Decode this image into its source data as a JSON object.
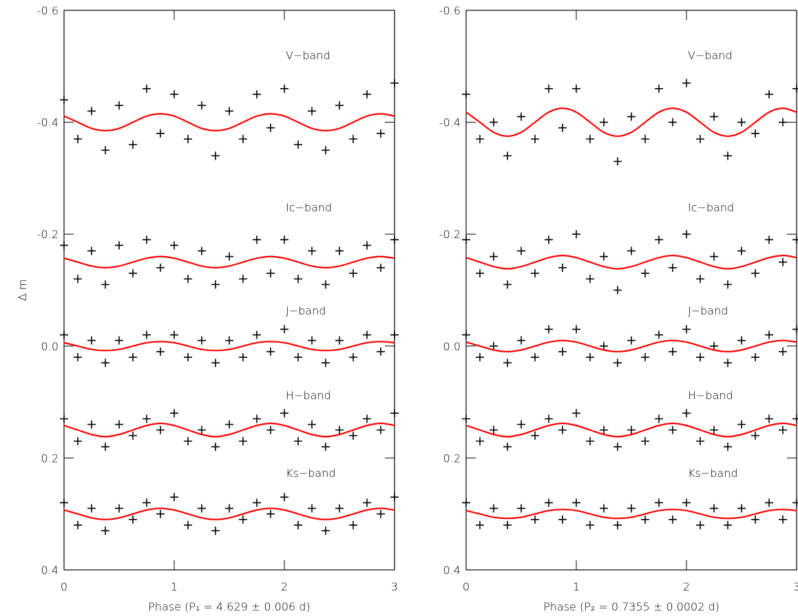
{
  "chart_data": [
    {
      "type": "scatter",
      "xlabel": "Phase (P₁ =  4.629 ± 0.006 d)",
      "ylabel": "Δ m",
      "xlim": [
        0,
        3
      ],
      "ylim": [
        -0.6,
        0.4
      ],
      "xticks": [
        0,
        1,
        2,
        3
      ],
      "yticks": [
        -0.6,
        -0.4,
        -0.2,
        {
          "value": 0,
          "label": "0.0"
        },
        0.2,
        0.4
      ],
      "annotations": [
        "V−band",
        "Ic−band",
        "J−band",
        "H−band",
        "Ks−band"
      ],
      "x": [
        0,
        0.125,
        0.25,
        0.375,
        0.5,
        0.625,
        0.75,
        0.875,
        1,
        1.125,
        1.25,
        1.375,
        1.5,
        1.625,
        1.75,
        1.875,
        2,
        2.125,
        2.25,
        2.375,
        2.5,
        2.625,
        2.75,
        2.875,
        3
      ],
      "series": [
        {
          "mode": "markers",
          "color": "#000000",
          "values": [
            -0.44,
            -0.37,
            -0.42,
            -0.35,
            -0.43,
            -0.36,
            -0.46,
            -0.38,
            -0.45,
            -0.37,
            -0.43,
            -0.34,
            -0.42,
            -0.37,
            -0.45,
            -0.39,
            -0.46,
            -0.36,
            -0.42,
            -0.35,
            -0.43,
            -0.37,
            -0.45,
            -0.38,
            -0.47
          ]
        },
        {
          "mode": "markers",
          "color": "#000000",
          "values": [
            -0.18,
            -0.12,
            -0.17,
            -0.11,
            -0.18,
            -0.13,
            -0.19,
            -0.14,
            -0.18,
            -0.12,
            -0.17,
            -0.11,
            -0.16,
            -0.12,
            -0.19,
            -0.13,
            -0.19,
            -0.12,
            -0.17,
            -0.11,
            -0.17,
            -0.13,
            -0.18,
            -0.14,
            -0.19
          ]
        },
        {
          "mode": "markers",
          "color": "#000000",
          "values": [
            -0.02,
            0.02,
            -0.01,
            0.03,
            -0.01,
            0.02,
            -0.02,
            0.01,
            -0.02,
            0.02,
            -0.01,
            0.03,
            -0.01,
            0.02,
            -0.02,
            0.01,
            -0.03,
            0.02,
            -0.01,
            0.03,
            -0.01,
            0.02,
            -0.02,
            0.01,
            -0.02
          ]
        },
        {
          "mode": "markers",
          "color": "#000000",
          "values": [
            0.13,
            0.17,
            0.14,
            0.18,
            0.14,
            0.16,
            0.13,
            0.15,
            0.12,
            0.17,
            0.15,
            0.18,
            0.14,
            0.17,
            0.13,
            0.15,
            0.12,
            0.17,
            0.14,
            0.18,
            0.15,
            0.16,
            0.13,
            0.15,
            0.12
          ]
        },
        {
          "mode": "markers",
          "color": "#000000",
          "values": [
            0.28,
            0.32,
            0.29,
            0.33,
            0.29,
            0.31,
            0.28,
            0.3,
            0.27,
            0.32,
            0.29,
            0.33,
            0.29,
            0.31,
            0.28,
            0.3,
            0.27,
            0.32,
            0.29,
            0.33,
            0.29,
            0.32,
            0.28,
            0.3,
            0.27
          ]
        },
        {
          "mode": "lines",
          "color": "#ff0000",
          "values": [
            -0.411,
            -0.4,
            -0.389,
            -0.385,
            -0.389,
            -0.4,
            -0.411,
            -0.415,
            -0.411,
            -0.4,
            -0.389,
            -0.385,
            -0.389,
            -0.4,
            -0.411,
            -0.415,
            -0.411,
            -0.4,
            -0.389,
            -0.385,
            -0.389,
            -0.4,
            -0.411,
            -0.415,
            -0.411
          ]
        },
        {
          "mode": "lines",
          "color": "#ff0000",
          "values": [
            -0.157,
            -0.15,
            -0.143,
            -0.14,
            -0.143,
            -0.15,
            -0.157,
            -0.16,
            -0.157,
            -0.15,
            -0.143,
            -0.14,
            -0.143,
            -0.15,
            -0.157,
            -0.16,
            -0.157,
            -0.15,
            -0.143,
            -0.14,
            -0.143,
            -0.15,
            -0.157,
            -0.16,
            -0.157
          ]
        },
        {
          "mode": "lines",
          "color": "#ff0000",
          "values": [
            -0.006,
            0,
            0.006,
            0.008,
            0.006,
            0,
            -0.006,
            -0.008,
            -0.006,
            0,
            0.006,
            0.008,
            0.006,
            0,
            -0.006,
            -0.008,
            -0.006,
            0,
            0.006,
            0.008,
            0.006,
            0,
            -0.006,
            -0.008,
            -0.006
          ]
        },
        {
          "mode": "lines",
          "color": "#ff0000",
          "values": [
            0.142,
            0.15,
            0.158,
            0.162,
            0.158,
            0.15,
            0.142,
            0.138,
            0.142,
            0.15,
            0.158,
            0.162,
            0.158,
            0.15,
            0.142,
            0.138,
            0.142,
            0.15,
            0.158,
            0.162,
            0.158,
            0.15,
            0.142,
            0.138,
            0.142
          ]
        },
        {
          "mode": "lines",
          "color": "#ff0000",
          "values": [
            0.293,
            0.3,
            0.307,
            0.31,
            0.307,
            0.3,
            0.293,
            0.29,
            0.293,
            0.3,
            0.307,
            0.31,
            0.307,
            0.3,
            0.293,
            0.29,
            0.293,
            0.3,
            0.307,
            0.31,
            0.307,
            0.3,
            0.293,
            0.29,
            0.293
          ]
        }
      ]
    },
    {
      "type": "scatter",
      "xlabel": "Phase (P₂ =  0.7355 ± 0.0002 d)",
      "xlim": [
        0,
        3
      ],
      "ylim": [
        -0.6,
        0.4
      ],
      "xticks": [
        0,
        1,
        2,
        3
      ],
      "yticks": [
        -0.6,
        -0.4,
        -0.2,
        {
          "value": 0,
          "label": "0.0"
        },
        0.2,
        0.4
      ],
      "annotations": [
        "V−band",
        "Ic−band",
        "J−band",
        "H−band",
        "Ks−band"
      ],
      "x": [
        0,
        0.125,
        0.25,
        0.375,
        0.5,
        0.625,
        0.75,
        0.875,
        1,
        1.125,
        1.25,
        1.375,
        1.5,
        1.625,
        1.75,
        1.875,
        2,
        2.125,
        2.25,
        2.375,
        2.5,
        2.625,
        2.75,
        2.875,
        3
      ],
      "series": [
        {
          "mode": "markers",
          "color": "#000000",
          "values": [
            -0.45,
            -0.37,
            -0.4,
            -0.34,
            -0.41,
            -0.37,
            -0.46,
            -0.39,
            -0.46,
            -0.37,
            -0.4,
            -0.33,
            -0.41,
            -0.37,
            -0.46,
            -0.4,
            -0.47,
            -0.37,
            -0.41,
            -0.34,
            -0.4,
            -0.38,
            -0.45,
            -0.4,
            -0.46
          ]
        },
        {
          "mode": "markers",
          "color": "#000000",
          "values": [
            -0.19,
            -0.13,
            -0.16,
            -0.11,
            -0.17,
            -0.13,
            -0.19,
            -0.14,
            -0.2,
            -0.12,
            -0.16,
            -0.1,
            -0.17,
            -0.13,
            -0.19,
            -0.14,
            -0.2,
            -0.12,
            -0.16,
            -0.11,
            -0.17,
            -0.13,
            -0.19,
            -0.15,
            -0.19
          ]
        },
        {
          "mode": "markers",
          "color": "#000000",
          "values": [
            -0.02,
            0.02,
            0,
            0.03,
            -0.01,
            0.02,
            -0.03,
            0.01,
            -0.03,
            0.02,
            0,
            0.03,
            -0.01,
            0.02,
            -0.02,
            0.01,
            -0.03,
            0.02,
            0,
            0.03,
            -0.01,
            0.02,
            -0.02,
            0.01,
            -0.03
          ]
        },
        {
          "mode": "markers",
          "color": "#000000",
          "values": [
            0.13,
            0.17,
            0.15,
            0.18,
            0.14,
            0.16,
            0.13,
            0.15,
            0.12,
            0.17,
            0.15,
            0.18,
            0.15,
            0.17,
            0.13,
            0.15,
            0.12,
            0.17,
            0.15,
            0.18,
            0.14,
            0.16,
            0.13,
            0.15,
            0.13
          ]
        },
        {
          "mode": "markers",
          "color": "#000000",
          "values": [
            0.28,
            0.32,
            0.29,
            0.32,
            0.29,
            0.31,
            0.28,
            0.31,
            0.28,
            0.32,
            0.29,
            0.32,
            0.29,
            0.31,
            0.28,
            0.31,
            0.28,
            0.32,
            0.29,
            0.32,
            0.29,
            0.31,
            0.28,
            0.31,
            0.28
          ]
        },
        {
          "mode": "lines",
          "color": "#ff0000",
          "values": [
            -0.418,
            -0.4,
            -0.382,
            -0.375,
            -0.382,
            -0.4,
            -0.418,
            -0.425,
            -0.418,
            -0.4,
            -0.382,
            -0.375,
            -0.382,
            -0.4,
            -0.418,
            -0.425,
            -0.418,
            -0.4,
            -0.382,
            -0.375,
            -0.382,
            -0.4,
            -0.418,
            -0.425,
            -0.418
          ]
        },
        {
          "mode": "lines",
          "color": "#ff0000",
          "values": [
            -0.158,
            -0.15,
            -0.142,
            -0.138,
            -0.142,
            -0.15,
            -0.158,
            -0.162,
            -0.158,
            -0.15,
            -0.142,
            -0.138,
            -0.142,
            -0.15,
            -0.158,
            -0.162,
            -0.158,
            -0.15,
            -0.142,
            -0.138,
            -0.142,
            -0.15,
            -0.158,
            -0.162,
            -0.158
          ]
        },
        {
          "mode": "lines",
          "color": "#ff0000",
          "values": [
            -0.007,
            0,
            0.007,
            0.01,
            0.007,
            0,
            -0.007,
            -0.01,
            -0.007,
            0,
            0.007,
            0.01,
            0.007,
            0,
            -0.007,
            -0.01,
            -0.007,
            0,
            0.007,
            0.01,
            0.007,
            0,
            -0.007,
            -0.01,
            -0.007
          ]
        },
        {
          "mode": "lines",
          "color": "#ff0000",
          "values": [
            0.142,
            0.15,
            0.158,
            0.162,
            0.158,
            0.15,
            0.142,
            0.138,
            0.142,
            0.15,
            0.158,
            0.162,
            0.158,
            0.15,
            0.142,
            0.138,
            0.142,
            0.15,
            0.158,
            0.162,
            0.158,
            0.15,
            0.142,
            0.138,
            0.142
          ]
        },
        {
          "mode": "lines",
          "color": "#ff0000",
          "values": [
            0.294,
            0.3,
            0.306,
            0.308,
            0.306,
            0.3,
            0.294,
            0.292,
            0.294,
            0.3,
            0.306,
            0.308,
            0.306,
            0.3,
            0.294,
            0.292,
            0.294,
            0.3,
            0.306,
            0.308,
            0.306,
            0.3,
            0.294,
            0.292,
            0.294
          ]
        }
      ]
    }
  ]
}
